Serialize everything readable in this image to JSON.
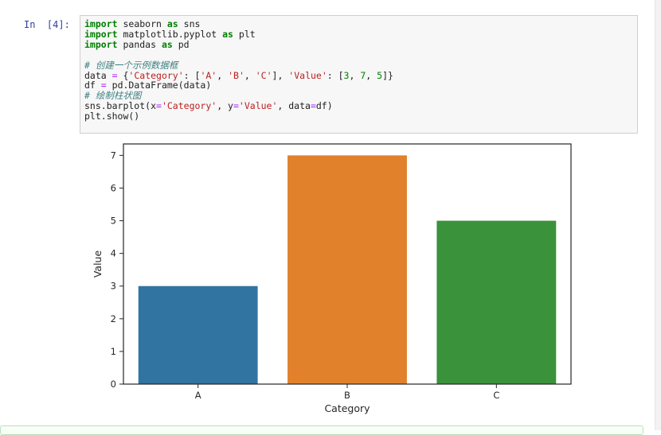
{
  "cell": {
    "prompt": "In  [4]:",
    "code_lines": [
      [
        {
          "t": "import",
          "c": "kw"
        },
        {
          "t": " seaborn "
        },
        {
          "t": "as",
          "c": "kw"
        },
        {
          "t": " sns"
        }
      ],
      [
        {
          "t": "import",
          "c": "kw"
        },
        {
          "t": " matplotlib.pyplot "
        },
        {
          "t": "as",
          "c": "kw"
        },
        {
          "t": " plt"
        }
      ],
      [
        {
          "t": "import",
          "c": "kw"
        },
        {
          "t": " pandas "
        },
        {
          "t": "as",
          "c": "kw"
        },
        {
          "t": " pd"
        }
      ],
      [],
      [
        {
          "t": "# 创建一个示例数据框",
          "c": "cm"
        }
      ],
      [
        {
          "t": "data "
        },
        {
          "t": "=",
          "c": "op"
        },
        {
          "t": " {"
        },
        {
          "t": "'Category'",
          "c": "str"
        },
        {
          "t": ": ["
        },
        {
          "t": "'A'",
          "c": "str"
        },
        {
          "t": ", "
        },
        {
          "t": "'B'",
          "c": "str"
        },
        {
          "t": ", "
        },
        {
          "t": "'C'",
          "c": "str"
        },
        {
          "t": "], "
        },
        {
          "t": "'Value'",
          "c": "str"
        },
        {
          "t": ": ["
        },
        {
          "t": "3",
          "c": "num"
        },
        {
          "t": ", "
        },
        {
          "t": "7",
          "c": "num"
        },
        {
          "t": ", "
        },
        {
          "t": "5",
          "c": "num"
        },
        {
          "t": "]}"
        }
      ],
      [
        {
          "t": "df "
        },
        {
          "t": "=",
          "c": "op"
        },
        {
          "t": " pd.DataFrame(data)"
        }
      ],
      [
        {
          "t": "# 绘制柱状图",
          "c": "cm"
        }
      ],
      [
        {
          "t": "sns.barplot(x"
        },
        {
          "t": "=",
          "c": "op"
        },
        {
          "t": "'Category'",
          "c": "str"
        },
        {
          "t": ", y"
        },
        {
          "t": "=",
          "c": "op"
        },
        {
          "t": "'Value'",
          "c": "str"
        },
        {
          "t": ", data"
        },
        {
          "t": "=",
          "c": "op"
        },
        {
          "t": "df)"
        }
      ],
      [
        {
          "t": "plt.show()"
        }
      ]
    ]
  },
  "chart_data": {
    "type": "bar",
    "categories": [
      "A",
      "B",
      "C"
    ],
    "values": [
      3,
      7,
      5
    ],
    "colors": [
      "#3274a1",
      "#e1812c",
      "#3a923a"
    ],
    "xlabel": "Category",
    "ylabel": "Value",
    "ylim": [
      0,
      7.35
    ],
    "yticks": [
      0,
      1,
      2,
      3,
      4,
      5,
      6,
      7
    ],
    "grid": false
  }
}
